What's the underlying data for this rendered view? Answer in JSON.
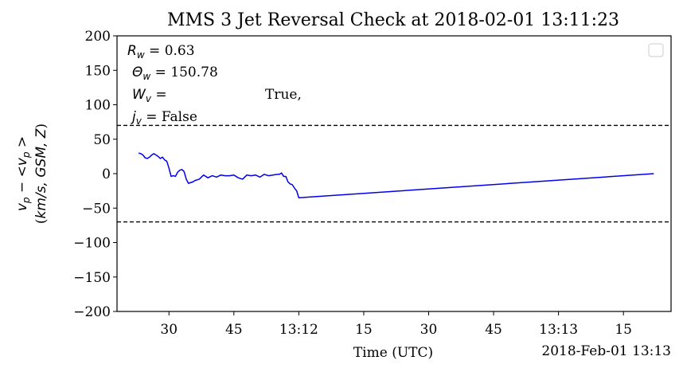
{
  "chart_data": {
    "type": "line",
    "title": "MMS 3 Jet Reversal Check at 2018-02-01 13:11:23",
    "xlabel": "Time (UTC)",
    "ylabel_line1": "v_p - <v_p>",
    "ylabel_line2": "(km/s, GSM, Z)",
    "offset_label": "2018-Feb-01 13:13",
    "ylim": [
      -200,
      200
    ],
    "xlim": [
      "13:11:18",
      "13:13:26"
    ],
    "yticks": [
      200,
      150,
      100,
      50,
      0,
      -50,
      -100,
      -150,
      -200
    ],
    "ytick_labels": [
      "200",
      "150",
      "100",
      "50",
      "0",
      "−50",
      "−100",
      "−150",
      "−200"
    ],
    "xticks": [
      "13:11:30",
      "13:11:45",
      "13:12:00",
      "13:12:15",
      "13:12:30",
      "13:12:45",
      "13:13:00",
      "13:13:15"
    ],
    "xtick_labels": [
      "30",
      "45",
      "13:12",
      "15",
      "30",
      "45",
      "13:13",
      "15"
    ],
    "grid": false,
    "legend": {
      "placement": "top-right",
      "entries": []
    },
    "hlines": [
      70,
      -70
    ],
    "annotations": {
      "rw": {
        "symbol": "R_w",
        "text": " = 0.63"
      },
      "thetaw": {
        "symbol": "Θ_w",
        "text": " = 150.78"
      },
      "wv": {
        "symbol": "W_v",
        "text": " =",
        "value": "True,"
      },
      "jv": {
        "symbol": "j_v",
        "text": " = False"
      }
    },
    "series": [
      {
        "color": "#0000ee",
        "x": [
          "13:11:23.0",
          "13:11:23.5",
          "13:11:24.0",
          "13:11:24.5",
          "13:11:25.0",
          "13:11:25.5",
          "13:11:26.0",
          "13:11:26.5",
          "13:11:27.0",
          "13:11:27.5",
          "13:11:28.0",
          "13:11:28.5",
          "13:11:29.0",
          "13:11:29.5",
          "13:11:30.0",
          "13:11:30.5",
          "13:11:31.0",
          "13:11:31.5",
          "13:11:32.0",
          "13:11:32.5",
          "13:11:33.0",
          "13:11:33.5",
          "13:11:34.0",
          "13:11:34.5",
          "13:11:35.0",
          "13:11:35.5",
          "13:11:36.0",
          "13:11:36.5",
          "13:11:37.0",
          "13:11:38.0",
          "13:11:39.0",
          "13:11:40.0",
          "13:11:41.0",
          "13:11:42.0",
          "13:11:43.0",
          "13:11:44.0",
          "13:11:45.0",
          "13:11:46.0",
          "13:11:47.0",
          "13:11:48.0",
          "13:11:49.0",
          "13:11:50.0",
          "13:11:51.0",
          "13:11:52.0",
          "13:11:53.0",
          "13:11:54.0",
          "13:11:55.0",
          "13:11:55.5",
          "13:11:56.0",
          "13:11:56.5",
          "13:11:57.0",
          "13:11:57.5",
          "13:11:58.0",
          "13:11:58.5",
          "13:11:59.0",
          "13:11:59.5",
          "13:12:00.0",
          "13:13:22.0"
        ],
        "y": [
          30,
          29,
          27,
          23,
          22,
          24,
          27,
          29,
          27,
          25,
          22,
          24,
          20,
          18,
          8,
          -4,
          -3,
          -4,
          2,
          5,
          6,
          3,
          -8,
          -14,
          -13,
          -12,
          -10,
          -9,
          -8,
          -2,
          -6,
          -3,
          -5,
          -2,
          -3,
          -3,
          -2,
          -6,
          -8,
          -2,
          -3,
          -2,
          -5,
          -1,
          -3,
          -2,
          -1,
          -1,
          1,
          -4,
          -4,
          -12,
          -15,
          -16,
          -21,
          -25,
          -35,
          0
        ]
      }
    ]
  }
}
